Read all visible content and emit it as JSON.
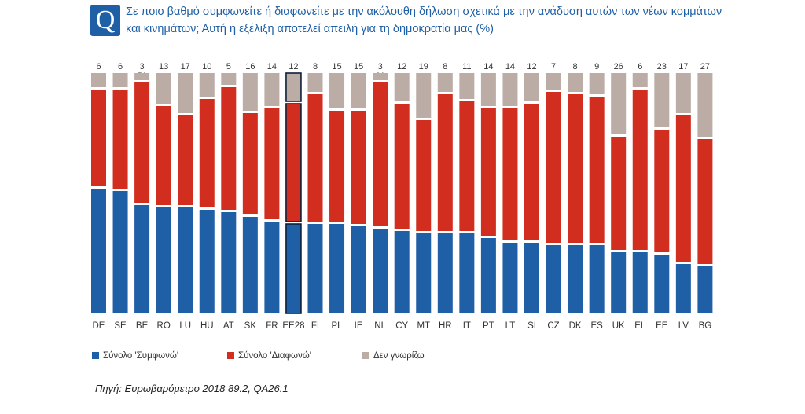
{
  "header": {
    "badge": "Q",
    "title_line1": "Σε ποιο βαθμό συμφωνείτε ή διαφωνείτε με την ακόλουθη δήλωση σχετικά με την ανάδυση αυτών των νέων κομμάτων",
    "title_line2": "και κινημάτων; Αυτή η εξέλιξη αποτελεί απειλή για τη δημοκρατία μας (%)"
  },
  "chart_data": {
    "type": "bar",
    "stacked": true,
    "percent_total": 100,
    "highlight_category": "EE28",
    "categories": [
      "DE",
      "SE",
      "BE",
      "RO",
      "LU",
      "HU",
      "AT",
      "SK",
      "FR",
      "EE28",
      "FI",
      "PL",
      "IE",
      "NL",
      "CY",
      "MT",
      "HR",
      "IT",
      "PT",
      "LT",
      "SI",
      "CZ",
      "DK",
      "ES",
      "UK",
      "EL",
      "EE",
      "LV",
      "BG"
    ],
    "series": [
      {
        "name": "Σύνολο 'Συμφωνώ'",
        "color": "#1f5fa6",
        "values": [
          53,
          52,
          46,
          45,
          45,
          44,
          43,
          41,
          39,
          38,
          38,
          38,
          37,
          36,
          35,
          34,
          34,
          34,
          32,
          30,
          30,
          29,
          29,
          29,
          26,
          26,
          25,
          21,
          20
        ]
      },
      {
        "name": "Σύνολο 'Διαφωνώ'",
        "color": "#d22e1f",
        "values": [
          41,
          42,
          51,
          42,
          38,
          46,
          52,
          43,
          47,
          50,
          54,
          47,
          48,
          61,
          53,
          47,
          58,
          55,
          54,
          56,
          58,
          64,
          63,
          62,
          48,
          68,
          52,
          62,
          53
        ]
      },
      {
        "name": "Δεν γνωρίζω",
        "color": "#bcaca6",
        "values": [
          6,
          6,
          3,
          13,
          17,
          10,
          5,
          16,
          14,
          12,
          8,
          15,
          15,
          3,
          12,
          19,
          8,
          11,
          14,
          14,
          12,
          7,
          8,
          9,
          26,
          6,
          23,
          17,
          27
        ]
      }
    ],
    "source": "Πηγή: Ευρωβαρόμετρο 2018 89.2, QA26.1"
  }
}
